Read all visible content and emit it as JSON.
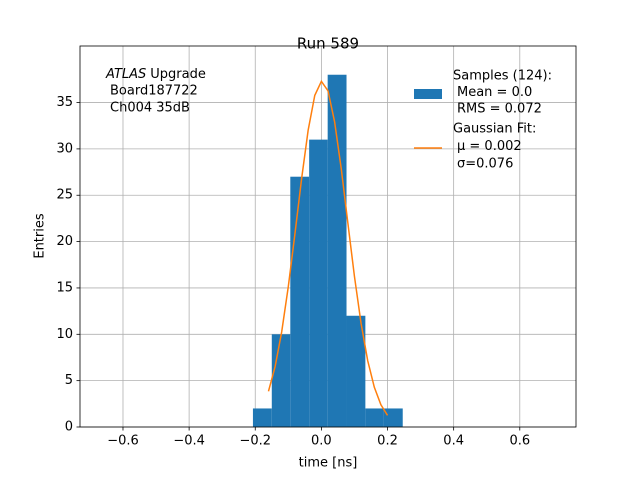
{
  "chart_data": {
    "type": "histogram",
    "title": "Run 589",
    "xlabel": "time [ns]",
    "ylabel": "Entries",
    "bins": [
      -0.207,
      -0.15,
      -0.094,
      -0.037,
      0.019,
      0.076,
      0.133,
      0.189,
      0.246
    ],
    "values": [
      2,
      10,
      27,
      31,
      38,
      12,
      2,
      2
    ],
    "color": "#1f77b4",
    "name": [
      "Samples (124):",
      "Mean = 0.0",
      "RMS = 0.072"
    ],
    "fit": {
      "type": "line",
      "color": "#ff7f0e",
      "name": [
        "Gaussian Fit:",
        "μ = 0.002",
        "σ=0.076"
      ],
      "x": [
        -0.16,
        -0.14,
        -0.12,
        -0.1,
        -0.08,
        -0.06,
        -0.04,
        -0.02,
        0.0,
        0.02,
        0.04,
        0.06,
        0.08,
        0.1,
        0.12,
        0.14,
        0.16,
        0.18,
        0.2
      ],
      "values": [
        3.85,
        6.51,
        10.28,
        15.16,
        20.84,
        26.74,
        32.02,
        35.77,
        37.29,
        36.27,
        32.92,
        27.88,
        22.03,
        16.24,
        11.18,
        7.17,
        4.3,
        2.4,
        1.25
      ]
    },
    "annotation_italic": "ATLAS",
    "annotation": [
      "Upgrade",
      "Board187722",
      "Ch004 35dB"
    ],
    "xlim": [
      -0.73,
      0.77
    ],
    "ylim": [
      0,
      41.1
    ],
    "xticks": [
      {
        "value": -0.6,
        "label": "−0.6"
      },
      {
        "value": -0.4,
        "label": "−0.4"
      },
      {
        "value": -0.2,
        "label": "−0.2"
      },
      {
        "value": 0,
        "label": "0.0"
      },
      {
        "value": 0.2,
        "label": "0.2"
      },
      {
        "value": 0.4,
        "label": "0.4"
      },
      {
        "value": 0.6,
        "label": "0.6"
      }
    ],
    "yticks": [
      0,
      5,
      10,
      15,
      20,
      25,
      30,
      35
    ],
    "grid": true,
    "legend": "upper right"
  }
}
